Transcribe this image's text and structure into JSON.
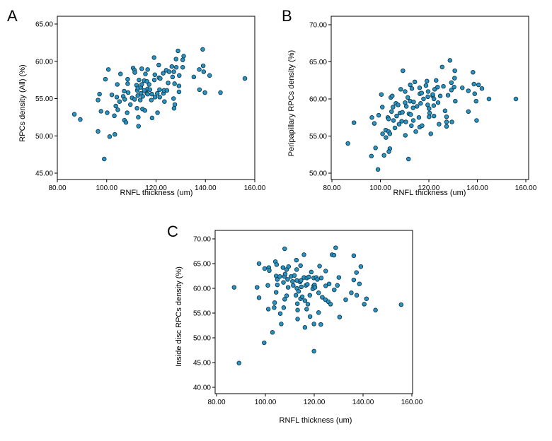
{
  "chart_data": [
    {
      "type": "scatter",
      "panel_label": "A",
      "xlabel": "RNFL thickness (um)",
      "ylabel": "RPCs density (All) (%)",
      "xlim": [
        80,
        160
      ],
      "ylim": [
        45,
        65
      ],
      "xticks": [
        80,
        100,
        120,
        140,
        160
      ],
      "xtick_labels": [
        "80.00",
        "100.00",
        "120.00",
        "140.00",
        "160.00"
      ],
      "yticks": [
        45,
        50,
        55,
        60,
        65
      ],
      "ytick_labels": [
        "45.00",
        "50.00",
        "55.00",
        "60.00",
        "65.00"
      ],
      "points": [
        [
          86.9,
          52.9
        ],
        [
          89.3,
          52.2
        ],
        [
          96.5,
          54.8
        ],
        [
          96.5,
          50.6
        ],
        [
          97.7,
          53.3
        ],
        [
          97.1,
          55.6
        ],
        [
          99,
          46.9
        ],
        [
          99.5,
          57.6
        ],
        [
          100.2,
          53.1
        ],
        [
          100.7,
          58.9
        ],
        [
          101.2,
          49.9
        ],
        [
          102.1,
          55.5
        ],
        [
          103.7,
          54
        ],
        [
          103.1,
          52.7
        ],
        [
          103.3,
          50.2
        ],
        [
          104.1,
          55.2
        ],
        [
          104.5,
          53.5
        ],
        [
          104.3,
          56.9
        ],
        [
          105.2,
          54.6
        ],
        [
          105.6,
          58.3
        ],
        [
          106.7,
          55.3
        ],
        [
          107.1,
          56
        ],
        [
          107.2,
          52.1
        ],
        [
          107.3,
          54.9
        ],
        [
          107.8,
          51.8
        ],
        [
          108.5,
          57.6
        ],
        [
          108.7,
          55.8
        ],
        [
          108.5,
          57
        ],
        [
          108.3,
          53.1
        ],
        [
          109.6,
          54.2
        ],
        [
          110.3,
          55.1
        ],
        [
          110.7,
          59.1
        ],
        [
          111.3,
          58.8
        ],
        [
          111.3,
          54.9
        ],
        [
          111.4,
          58.5
        ],
        [
          112.1,
          56.8
        ],
        [
          112.4,
          56.1
        ],
        [
          112.6,
          56.4
        ],
        [
          112.6,
          55.4
        ],
        [
          112.3,
          53.7
        ],
        [
          112.8,
          52.5
        ],
        [
          112.9,
          51.3
        ],
        [
          113.1,
          57.5
        ],
        [
          113.6,
          54.8
        ],
        [
          113.9,
          55.7
        ],
        [
          113.8,
          56.5
        ],
        [
          114.2,
          56.9
        ],
        [
          114.2,
          59
        ],
        [
          114.6,
          55.3
        ],
        [
          114.5,
          53.6
        ],
        [
          115.2,
          57.4
        ],
        [
          115.2,
          56.1
        ],
        [
          115.7,
          58.3
        ],
        [
          115.5,
          53.4
        ],
        [
          116.3,
          57.3
        ],
        [
          116.3,
          55.7
        ],
        [
          116.6,
          56.3
        ],
        [
          116.6,
          58.9
        ],
        [
          116.6,
          55.6
        ],
        [
          117.2,
          56.9
        ],
        [
          117.5,
          56.2
        ],
        [
          118.1,
          54.8
        ],
        [
          118.3,
          55.6
        ],
        [
          118.4,
          52.4
        ],
        [
          119.2,
          60.5
        ],
        [
          119.5,
          58.2
        ],
        [
          119.3,
          57.5
        ],
        [
          119.6,
          55.2
        ],
        [
          120.5,
          55.7
        ],
        [
          120.6,
          53.1
        ],
        [
          121.1,
          59.5
        ],
        [
          121.2,
          57.8
        ],
        [
          121.7,
          57.7
        ],
        [
          121.4,
          56.2
        ],
        [
          121.5,
          55.2
        ],
        [
          122.9,
          58.4
        ],
        [
          123,
          55.7
        ],
        [
          123.2,
          56.1
        ],
        [
          123.4,
          54.6
        ],
        [
          124.1,
          58.8
        ],
        [
          124.9,
          57.1
        ],
        [
          124.4,
          56.1
        ],
        [
          125.3,
          58.6
        ],
        [
          126.4,
          59.3
        ],
        [
          126.7,
          57.9
        ],
        [
          127.1,
          55
        ],
        [
          127.2,
          58.6
        ],
        [
          127.5,
          57
        ],
        [
          127.6,
          54.2
        ],
        [
          127.3,
          53.7
        ],
        [
          128.1,
          60.3
        ],
        [
          128.2,
          59.2
        ],
        [
          128.9,
          61.4
        ],
        [
          129.3,
          55.9
        ],
        [
          129.3,
          56.7
        ],
        [
          129.4,
          58.1
        ],
        [
          130.8,
          60.2
        ],
        [
          130.8,
          59.2
        ],
        [
          131.2,
          60.7
        ],
        [
          135.3,
          57.9
        ],
        [
          137.5,
          58.9
        ],
        [
          137.6,
          56.2
        ],
        [
          138.9,
          61.6
        ],
        [
          139.8,
          55.8
        ],
        [
          139.1,
          59.4
        ],
        [
          139.3,
          58.6
        ],
        [
          141.7,
          58.1
        ],
        [
          146.1,
          55.8
        ],
        [
          156,
          57.7
        ]
      ]
    },
    {
      "type": "scatter",
      "panel_label": "B",
      "xlabel": "RNFL thickness (um)",
      "ylabel": "Peripapillary RPCs density (%)",
      "xlim": [
        80,
        160
      ],
      "ylim": [
        50,
        70
      ],
      "xticks": [
        80,
        100,
        120,
        140,
        160
      ],
      "xtick_labels": [
        "80.00",
        "100.00",
        "120.00",
        "140.00",
        "160.00"
      ],
      "yticks": [
        50,
        55,
        60,
        65,
        70
      ],
      "ytick_labels": [
        "50.00",
        "55.00",
        "60.00",
        "65.00",
        "70.00"
      ],
      "points": [
        [
          86.6,
          54
        ],
        [
          89.1,
          56.8
        ],
        [
          96.3,
          52.3
        ],
        [
          96.5,
          57.5
        ],
        [
          97.5,
          56.7
        ],
        [
          98,
          53.4
        ],
        [
          99,
          50.5
        ],
        [
          99.3,
          57.8
        ],
        [
          100.4,
          60.6
        ],
        [
          100.8,
          58.9
        ],
        [
          100.9,
          55.3
        ],
        [
          101.5,
          52.4
        ],
        [
          102.2,
          55.8
        ],
        [
          102.3,
          54.8
        ],
        [
          103.1,
          57.5
        ],
        [
          103.4,
          57.3
        ],
        [
          103.4,
          55.6
        ],
        [
          103.9,
          53.3
        ],
        [
          103.9,
          55.3
        ],
        [
          103.5,
          52.9
        ],
        [
          104.3,
          60.2
        ],
        [
          104.6,
          58.3
        ],
        [
          104.9,
          60.4
        ],
        [
          105.2,
          58.9
        ],
        [
          105.4,
          57.1
        ],
        [
          106,
          56.1
        ],
        [
          106.4,
          59.4
        ],
        [
          106.7,
          57.7
        ],
        [
          107.3,
          59.2
        ],
        [
          107.7,
          56.6
        ],
        [
          108.1,
          58.1
        ],
        [
          108.4,
          61.3
        ],
        [
          108.8,
          57
        ],
        [
          109.1,
          58.2
        ],
        [
          109.3,
          63.8
        ],
        [
          110.2,
          61
        ],
        [
          110.7,
          59
        ],
        [
          110.2,
          59.5
        ],
        [
          110.5,
          56.9
        ],
        [
          110.3,
          55.1
        ],
        [
          111.8,
          58
        ],
        [
          111.3,
          60.2
        ],
        [
          111.6,
          51.9
        ],
        [
          112.3,
          61.9
        ],
        [
          112.3,
          59.7
        ],
        [
          112.5,
          57.9
        ],
        [
          112.8,
          56.4
        ],
        [
          113,
          61.4
        ],
        [
          113.7,
          59.6
        ],
        [
          113.5,
          58.8
        ],
        [
          113.6,
          57.1
        ],
        [
          114.2,
          62.3
        ],
        [
          114.6,
          55.6
        ],
        [
          115.1,
          59
        ],
        [
          115.9,
          57.5
        ],
        [
          116.2,
          56.2
        ],
        [
          116.2,
          61.5
        ],
        [
          116.3,
          60.7
        ],
        [
          116.6,
          59.4
        ],
        [
          117,
          60.8
        ],
        [
          117.2,
          56.4
        ],
        [
          117.8,
          60
        ],
        [
          118.8,
          61.8
        ],
        [
          119.2,
          62.4
        ],
        [
          119.5,
          59.2
        ],
        [
          119.7,
          61
        ],
        [
          119.6,
          60.3
        ],
        [
          120.1,
          58.7
        ],
        [
          120.1,
          57.6
        ],
        [
          120.3,
          58.1
        ],
        [
          120.8,
          55.3
        ],
        [
          121.6,
          60.4
        ],
        [
          121.6,
          60.6
        ],
        [
          122,
          59.1
        ],
        [
          122.1,
          60
        ],
        [
          122.1,
          57.7
        ],
        [
          122.4,
          61.3
        ],
        [
          123,
          62.5
        ],
        [
          123.6,
          61.6
        ],
        [
          123.8,
          59.5
        ],
        [
          124.2,
          56.6
        ],
        [
          124.7,
          60.4
        ],
        [
          125.5,
          64.3
        ],
        [
          126,
          61.7
        ],
        [
          126.7,
          58.4
        ],
        [
          127.3,
          57.6
        ],
        [
          127.3,
          56.3
        ],
        [
          127.3,
          56.9
        ],
        [
          127.9,
          60.5
        ],
        [
          128.7,
          65.2
        ],
        [
          129.3,
          62.2
        ],
        [
          129.3,
          61.2
        ],
        [
          129.5,
          56.9
        ],
        [
          130.4,
          61.6
        ],
        [
          130.7,
          63.8
        ],
        [
          130.6,
          62.8
        ],
        [
          130.9,
          59.7
        ],
        [
          133.8,
          61.5
        ],
        [
          136.3,
          58.3
        ],
        [
          136.3,
          61.1
        ],
        [
          138.2,
          63.6
        ],
        [
          138.6,
          62
        ],
        [
          138.9,
          60.7
        ],
        [
          139.5,
          59.7
        ],
        [
          139.7,
          57.1
        ],
        [
          140.5,
          61.9
        ],
        [
          141.9,
          61.4
        ],
        [
          144.8,
          60
        ],
        [
          155.9,
          60
        ]
      ]
    },
    {
      "type": "scatter",
      "panel_label": "C",
      "xlabel": "RNFL thickness (um)",
      "ylabel": "Inside disc RPCs density (%)",
      "xlim": [
        80,
        160
      ],
      "ylim": [
        40,
        70
      ],
      "xticks": [
        80,
        100,
        120,
        140,
        160
      ],
      "xtick_labels": [
        "80.00",
        "100.00",
        "120.00",
        "140.00",
        "160.00"
      ],
      "yticks": [
        40,
        45,
        50,
        55,
        60,
        65,
        70
      ],
      "ytick_labels": [
        "40.00",
        "45.00",
        "50.00",
        "55.00",
        "60.00",
        "65.00",
        "70.00"
      ],
      "points": [
        [
          87.2,
          60.2
        ],
        [
          89.2,
          44.9
        ],
        [
          96.6,
          60.2
        ],
        [
          97.4,
          65
        ],
        [
          97.4,
          58.1
        ],
        [
          99.5,
          49
        ],
        [
          99.7,
          64
        ],
        [
          101.2,
          55.8
        ],
        [
          101,
          60.6
        ],
        [
          101.4,
          64.2
        ],
        [
          101.6,
          63.6
        ],
        [
          102.9,
          51.1
        ],
        [
          103.6,
          56.1
        ],
        [
          103.8,
          57.1
        ],
        [
          104.1,
          65.4
        ],
        [
          104.4,
          62.5
        ],
        [
          104.4,
          59.2
        ],
        [
          104.6,
          64.8
        ],
        [
          104.9,
          60.7
        ],
        [
          104.9,
          61.8
        ],
        [
          105.9,
          62.4
        ],
        [
          106.1,
          54.9
        ],
        [
          106.5,
          52.8
        ],
        [
          107.2,
          64.2
        ],
        [
          107.4,
          61.2
        ],
        [
          107.5,
          56.1
        ],
        [
          107.8,
          62.4
        ],
        [
          107.9,
          68
        ],
        [
          107.9,
          57.8
        ],
        [
          108.1,
          62.9
        ],
        [
          108.7,
          63.8
        ],
        [
          108.7,
          58.5
        ],
        [
          109.1,
          61.8
        ],
        [
          109.3,
          60.2
        ],
        [
          109.5,
          64.4
        ],
        [
          110.5,
          62.4
        ],
        [
          111.1,
          61.4
        ],
        [
          111.4,
          60.6
        ],
        [
          111.9,
          62.6
        ],
        [
          112.5,
          58.6
        ],
        [
          112.7,
          65.7
        ],
        [
          112.8,
          63.8
        ],
        [
          112.9,
          61.6
        ],
        [
          112.9,
          60
        ],
        [
          113.1,
          56.9
        ],
        [
          113.2,
          55.6
        ],
        [
          113.2,
          53.8
        ],
        [
          113.6,
          59.4
        ],
        [
          114.2,
          61.3
        ],
        [
          114.4,
          57.9
        ],
        [
          114.4,
          64.6
        ],
        [
          114.6,
          61.6
        ],
        [
          114.7,
          60.3
        ],
        [
          115.1,
          58.3
        ],
        [
          115.8,
          66.8
        ],
        [
          115.8,
          62.2
        ],
        [
          116.2,
          57.5
        ],
        [
          116.2,
          52.1
        ],
        [
          116.6,
          60.6
        ],
        [
          116.9,
          55.8
        ],
        [
          117,
          62.1
        ],
        [
          117.2,
          60.8
        ],
        [
          117.4,
          56.8
        ],
        [
          117.8,
          62.3
        ],
        [
          118.2,
          58.6
        ],
        [
          118.3,
          54.3
        ],
        [
          118.8,
          63.3
        ],
        [
          119.4,
          59.9
        ],
        [
          119.8,
          60.5
        ],
        [
          119.8,
          62.1
        ],
        [
          119.9,
          52.8
        ],
        [
          119.9,
          47.3
        ],
        [
          120.1,
          60.7
        ],
        [
          120.3,
          60.2
        ],
        [
          120.8,
          62.2
        ],
        [
          121.3,
          61.8
        ],
        [
          121.8,
          55.1
        ],
        [
          121.8,
          59.1
        ],
        [
          122.2,
          64.5
        ],
        [
          122.7,
          52.7
        ],
        [
          122.9,
          62.1
        ],
        [
          123.3,
          58.2
        ],
        [
          124.6,
          57.7
        ],
        [
          124.7,
          63.5
        ],
        [
          124.7,
          60.5
        ],
        [
          125.8,
          57.3
        ],
        [
          126.1,
          60.9
        ],
        [
          126.7,
          56.8
        ],
        [
          127.3,
          66.8
        ],
        [
          128.1,
          66.7
        ],
        [
          128.2,
          59.7
        ],
        [
          128.8,
          68.2
        ],
        [
          129.5,
          60.6
        ],
        [
          130.1,
          62.2
        ],
        [
          130.4,
          54.2
        ],
        [
          132.9,
          57.7
        ],
        [
          135.2,
          59.1
        ],
        [
          136.2,
          61.7
        ],
        [
          136.2,
          66.6
        ],
        [
          137.3,
          63.2
        ],
        [
          137.4,
          58.6
        ],
        [
          138.5,
          60.9
        ],
        [
          139.1,
          64.4
        ],
        [
          140.5,
          56.8
        ],
        [
          141.4,
          57.9
        ],
        [
          145.1,
          55.6
        ],
        [
          155.6,
          56.7
        ]
      ]
    }
  ]
}
